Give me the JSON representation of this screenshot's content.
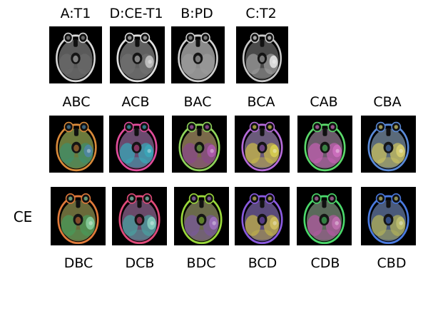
{
  "top_row": [
    {
      "label": "A:T1",
      "tint": "mono-dark",
      "lesion": false
    },
    {
      "label": "D:CE-T1",
      "tint": "mono",
      "lesion": true
    },
    {
      "label": "B:PD",
      "tint": "mono-light",
      "lesion": false
    },
    {
      "label": "C:T2",
      "tint": "mono-t2",
      "lesion": true
    }
  ],
  "middle_row": [
    {
      "label": "ABC",
      "colors": {
        "rim": "#d98a3a",
        "bg": "#6b7a3c",
        "fill": "#3f8f6a",
        "spot": "#4f86a8"
      }
    },
    {
      "label": "ACB",
      "colors": {
        "rim": "#e04c9a",
        "bg": "#6a4a6e",
        "fill": "#3aa7b8",
        "spot": "#3aa7b8"
      }
    },
    {
      "label": "BAC",
      "colors": {
        "rim": "#8fd35a",
        "bg": "#7a6a4a",
        "fill": "#8a4a8a",
        "spot": "#b05ab0"
      }
    },
    {
      "label": "BCA",
      "colors": {
        "rim": "#b46ad8",
        "bg": "#6a5a7a",
        "fill": "#c8b84a",
        "spot": "#d8d050"
      }
    },
    {
      "label": "CAB",
      "colors": {
        "rim": "#5ad86a",
        "bg": "#6a5a6a",
        "fill": "#c060b0",
        "spot": "#d070c0"
      }
    },
    {
      "label": "CBA",
      "colors": {
        "rim": "#5a8ad8",
        "bg": "#5a6a7a",
        "fill": "#c8c060",
        "spot": "#d8d070"
      }
    }
  ],
  "bottom_row": [
    {
      "label": "DBC",
      "colors": {
        "rim": "#e07a3a",
        "bg": "#6a6a3a",
        "fill": "#4a9a5a",
        "spot": "#8ad0a0"
      }
    },
    {
      "label": "DCB",
      "colors": {
        "rim": "#e04a7a",
        "bg": "#6a4a6a",
        "fill": "#4aa0a0",
        "spot": "#8ad0c0"
      }
    },
    {
      "label": "BDC",
      "colors": {
        "rim": "#9ad83a",
        "bg": "#6a6a4a",
        "fill": "#7a5a9a",
        "spot": "#a070c0"
      }
    },
    {
      "label": "BCD",
      "colors": {
        "rim": "#8a5ae0",
        "bg": "#5a4a7a",
        "fill": "#c0b04a",
        "spot": "#d0c060"
      }
    },
    {
      "label": "CDB",
      "colors": {
        "rim": "#4ad86a",
        "bg": "#5a6a5a",
        "fill": "#b05aa0",
        "spot": "#c070b0"
      }
    },
    {
      "label": "CBD",
      "colors": {
        "rim": "#4a7ae0",
        "bg": "#4a5a7a",
        "fill": "#b0b05a",
        "spot": "#c0c070"
      }
    }
  ],
  "row_label": "CE"
}
